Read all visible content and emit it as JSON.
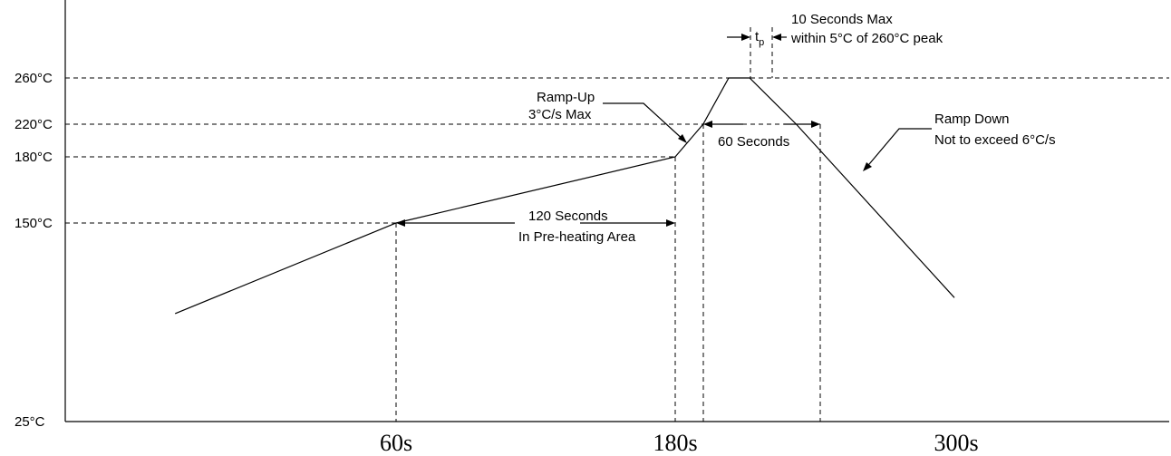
{
  "chart_data": {
    "type": "line",
    "title": "",
    "xlabel": "",
    "ylabel": "",
    "y_ticks": [
      "25°C",
      "150°C",
      "180°C",
      "220°C",
      "260°C"
    ],
    "x_ticks": [
      "60s",
      "180s",
      "300s"
    ],
    "series": [
      {
        "points": [
          {
            "x": -35,
            "y": 93
          },
          {
            "x": 60,
            "y": 150
          },
          {
            "x": 180,
            "y": 180
          },
          {
            "x": 192,
            "y": 220
          },
          {
            "x": 203,
            "y": 260
          },
          {
            "x": 212,
            "y": 260
          },
          {
            "x": 232,
            "y": 220
          },
          {
            "x": 300,
            "y": 103
          }
        ]
      }
    ],
    "annotations": {
      "tp_symbol": "t",
      "tp_sub": "p",
      "peak_line1": "10 Seconds Max",
      "peak_line2": "within 5°C of 260°C peak",
      "rampup_line1": "Ramp-Up",
      "rampup_line2": "3°C/s Max",
      "sixty": "60 Seconds",
      "rampdown_line1": "Ramp Down",
      "rampdown_line2": "Not to exceed 6°C/s",
      "preheat_line1": "120 Seconds",
      "preheat_line2": "In Pre-heating Area"
    },
    "grid": "dashed reference lines",
    "legend": "none"
  }
}
